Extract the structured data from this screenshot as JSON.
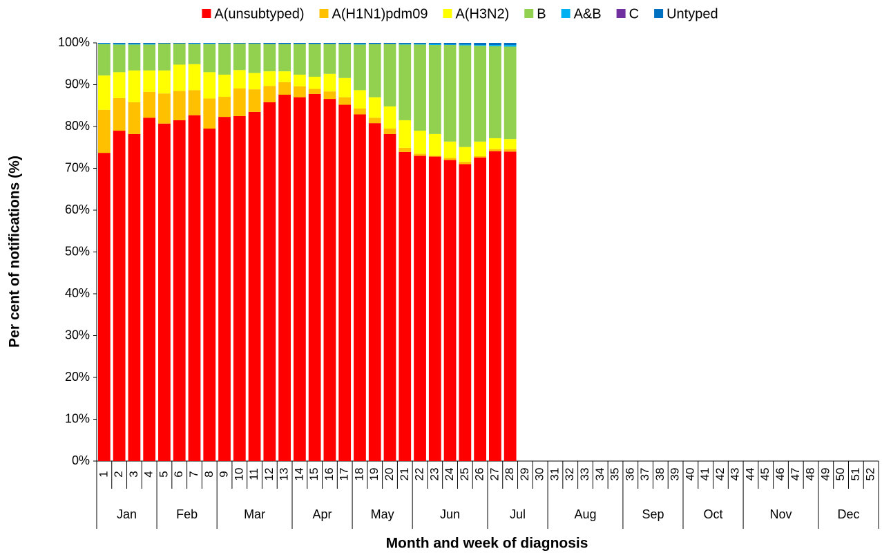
{
  "chart_data": {
    "type": "stacked_bar",
    "y_label": "Per cent of notifications (%)",
    "x_label": "Month and week of diagnosis",
    "categories": [
      {
        "week": "1",
        "month": "Jan"
      },
      {
        "week": "2",
        "month": "Jan"
      },
      {
        "week": "3",
        "month": "Jan"
      },
      {
        "week": "4",
        "month": "Jan"
      },
      {
        "week": "5",
        "month": "Feb"
      },
      {
        "week": "6",
        "month": "Feb"
      },
      {
        "week": "7",
        "month": "Feb"
      },
      {
        "week": "8",
        "month": "Feb"
      },
      {
        "week": "9",
        "month": "Mar"
      },
      {
        "week": "10",
        "month": "Mar"
      },
      {
        "week": "11",
        "month": "Mar"
      },
      {
        "week": "12",
        "month": "Mar"
      },
      {
        "week": "13",
        "month": "Mar"
      },
      {
        "week": "14",
        "month": "Apr"
      },
      {
        "week": "15",
        "month": "Apr"
      },
      {
        "week": "16",
        "month": "Apr"
      },
      {
        "week": "17",
        "month": "Apr"
      },
      {
        "week": "18",
        "month": "May"
      },
      {
        "week": "19",
        "month": "May"
      },
      {
        "week": "20",
        "month": "May"
      },
      {
        "week": "21",
        "month": "May"
      },
      {
        "week": "22",
        "month": "Jun"
      },
      {
        "week": "23",
        "month": "Jun"
      },
      {
        "week": "24",
        "month": "Jun"
      },
      {
        "week": "25",
        "month": "Jun"
      },
      {
        "week": "26",
        "month": "Jun"
      },
      {
        "week": "27",
        "month": "Jul"
      },
      {
        "week": "28",
        "month": "Jul"
      },
      {
        "week": "29",
        "month": "Jul"
      },
      {
        "week": "30",
        "month": "Jul"
      },
      {
        "week": "31",
        "month": "Aug"
      },
      {
        "week": "32",
        "month": "Aug"
      },
      {
        "week": "33",
        "month": "Aug"
      },
      {
        "week": "34",
        "month": "Aug"
      },
      {
        "week": "35",
        "month": "Aug"
      },
      {
        "week": "36",
        "month": "Sep"
      },
      {
        "week": "37",
        "month": "Sep"
      },
      {
        "week": "38",
        "month": "Sep"
      },
      {
        "week": "39",
        "month": "Sep"
      },
      {
        "week": "40",
        "month": "Oct"
      },
      {
        "week": "41",
        "month": "Oct"
      },
      {
        "week": "42",
        "month": "Oct"
      },
      {
        "week": "43",
        "month": "Oct"
      },
      {
        "week": "44",
        "month": "Nov"
      },
      {
        "week": "45",
        "month": "Nov"
      },
      {
        "week": "46",
        "month": "Nov"
      },
      {
        "week": "47",
        "month": "Nov"
      },
      {
        "week": "48",
        "month": "Nov"
      },
      {
        "week": "49",
        "month": "Dec"
      },
      {
        "week": "50",
        "month": "Dec"
      },
      {
        "week": "51",
        "month": "Dec"
      },
      {
        "week": "52",
        "month": "Dec"
      }
    ],
    "series": [
      {
        "name": "A(unsubtyped)",
        "color": "#ff0000",
        "values": [
          73.7,
          79.0,
          78.2,
          82.1,
          80.7,
          81.5,
          82.7,
          79.5,
          82.3,
          82.5,
          83.5,
          85.8,
          87.6,
          87.0,
          87.8,
          86.6,
          85.2,
          82.9,
          80.8,
          78.2,
          73.9,
          73.0,
          72.8,
          72.0,
          71.0,
          72.6,
          74.1,
          74.0,
          null,
          null,
          null,
          null,
          null,
          null,
          null,
          null,
          null,
          null,
          null,
          null,
          null,
          null,
          null,
          null,
          null,
          null,
          null,
          null,
          null,
          null,
          null,
          null
        ]
      },
      {
        "name": "A(H1N1)pdm09",
        "color": "#ffc000",
        "values": [
          10.3,
          7.8,
          7.6,
          6.2,
          7.2,
          7.0,
          6.0,
          7.2,
          4.8,
          6.6,
          5.4,
          3.9,
          3.0,
          2.6,
          1.2,
          1.8,
          1.8,
          1.4,
          1.3,
          1.3,
          1.0,
          0.5,
          0.2,
          0.5,
          0.6,
          0.3,
          0.5,
          0.6,
          null,
          null,
          null,
          null,
          null,
          null,
          null,
          null,
          null,
          null,
          null,
          null,
          null,
          null,
          null,
          null,
          null,
          null,
          null,
          null,
          null,
          null,
          null,
          null
        ]
      },
      {
        "name": "A(H3N2)",
        "color": "#ffff00",
        "values": [
          8.2,
          6.2,
          7.6,
          5.1,
          5.5,
          6.3,
          6.2,
          6.3,
          5.3,
          4.4,
          3.9,
          3.5,
          2.6,
          2.8,
          2.9,
          4.2,
          4.6,
          4.4,
          4.9,
          5.3,
          6.6,
          5.5,
          5.2,
          3.9,
          3.5,
          3.5,
          2.6,
          2.4,
          null,
          null,
          null,
          null,
          null,
          null,
          null,
          null,
          null,
          null,
          null,
          null,
          null,
          null,
          null,
          null,
          null,
          null,
          null,
          null,
          null,
          null,
          null,
          null
        ]
      },
      {
        "name": "B",
        "color": "#92d050",
        "values": [
          7.5,
          6.6,
          6.2,
          6.2,
          6.4,
          5.0,
          4.8,
          6.7,
          7.4,
          6.3,
          7.0,
          6.5,
          6.5,
          7.3,
          7.8,
          7.1,
          8.1,
          10.9,
          12.7,
          14.9,
          18.1,
          20.6,
          21.3,
          23.1,
          24.3,
          22.9,
          22.0,
          22.1,
          null,
          null,
          null,
          null,
          null,
          null,
          null,
          null,
          null,
          null,
          null,
          null,
          null,
          null,
          null,
          null,
          null,
          null,
          null,
          null,
          null,
          null,
          null,
          null
        ]
      },
      {
        "name": "A&B",
        "color": "#00b0f0",
        "values": [
          0.1,
          0.1,
          0.1,
          0.1,
          0,
          0,
          0.1,
          0.1,
          0,
          0,
          0,
          0,
          0,
          0,
          0,
          0,
          0,
          0.1,
          0,
          0,
          0.1,
          0.1,
          0.2,
          0.1,
          0.2,
          0.2,
          0.3,
          0.4,
          null,
          null,
          null,
          null,
          null,
          null,
          null,
          null,
          null,
          null,
          null,
          null,
          null,
          null,
          null,
          null,
          null,
          null,
          null,
          null,
          null,
          null,
          null,
          null
        ]
      },
      {
        "name": "C",
        "color": "#7030a0",
        "values": [
          0,
          0,
          0,
          0,
          0,
          0,
          0,
          0,
          0,
          0,
          0,
          0,
          0,
          0,
          0,
          0,
          0,
          0,
          0,
          0,
          0,
          0,
          0,
          0,
          0,
          0,
          0,
          0,
          null,
          null,
          null,
          null,
          null,
          null,
          null,
          null,
          null,
          null,
          null,
          null,
          null,
          null,
          null,
          null,
          null,
          null,
          null,
          null,
          null,
          null,
          null,
          null
        ]
      },
      {
        "name": "Untyped",
        "color": "#0070c0",
        "values": [
          0.2,
          0.3,
          0.3,
          0.3,
          0.2,
          0.2,
          0.2,
          0.2,
          0.2,
          0.2,
          0.2,
          0.3,
          0.3,
          0.3,
          0.3,
          0.3,
          0.3,
          0.3,
          0.3,
          0.3,
          0.3,
          0.3,
          0.3,
          0.4,
          0.4,
          0.5,
          0.5,
          0.5,
          null,
          null,
          null,
          null,
          null,
          null,
          null,
          null,
          null,
          null,
          null,
          null,
          null,
          null,
          null,
          null,
          null,
          null,
          null,
          null,
          null,
          null,
          null,
          null
        ]
      }
    ],
    "ylim": [
      0,
      100
    ],
    "yticks": [
      {
        "value": 0,
        "label": "0%"
      },
      {
        "value": 10,
        "label": "10%"
      },
      {
        "value": 20,
        "label": "20%"
      },
      {
        "value": 30,
        "label": "30%"
      },
      {
        "value": 40,
        "label": "40%"
      },
      {
        "value": 50,
        "label": "50%"
      },
      {
        "value": 60,
        "label": "60%"
      },
      {
        "value": 70,
        "label": "70%"
      },
      {
        "value": 80,
        "label": "80%"
      },
      {
        "value": 90,
        "label": "90%"
      },
      {
        "value": 100,
        "label": "100%"
      }
    ],
    "legend": "top"
  }
}
